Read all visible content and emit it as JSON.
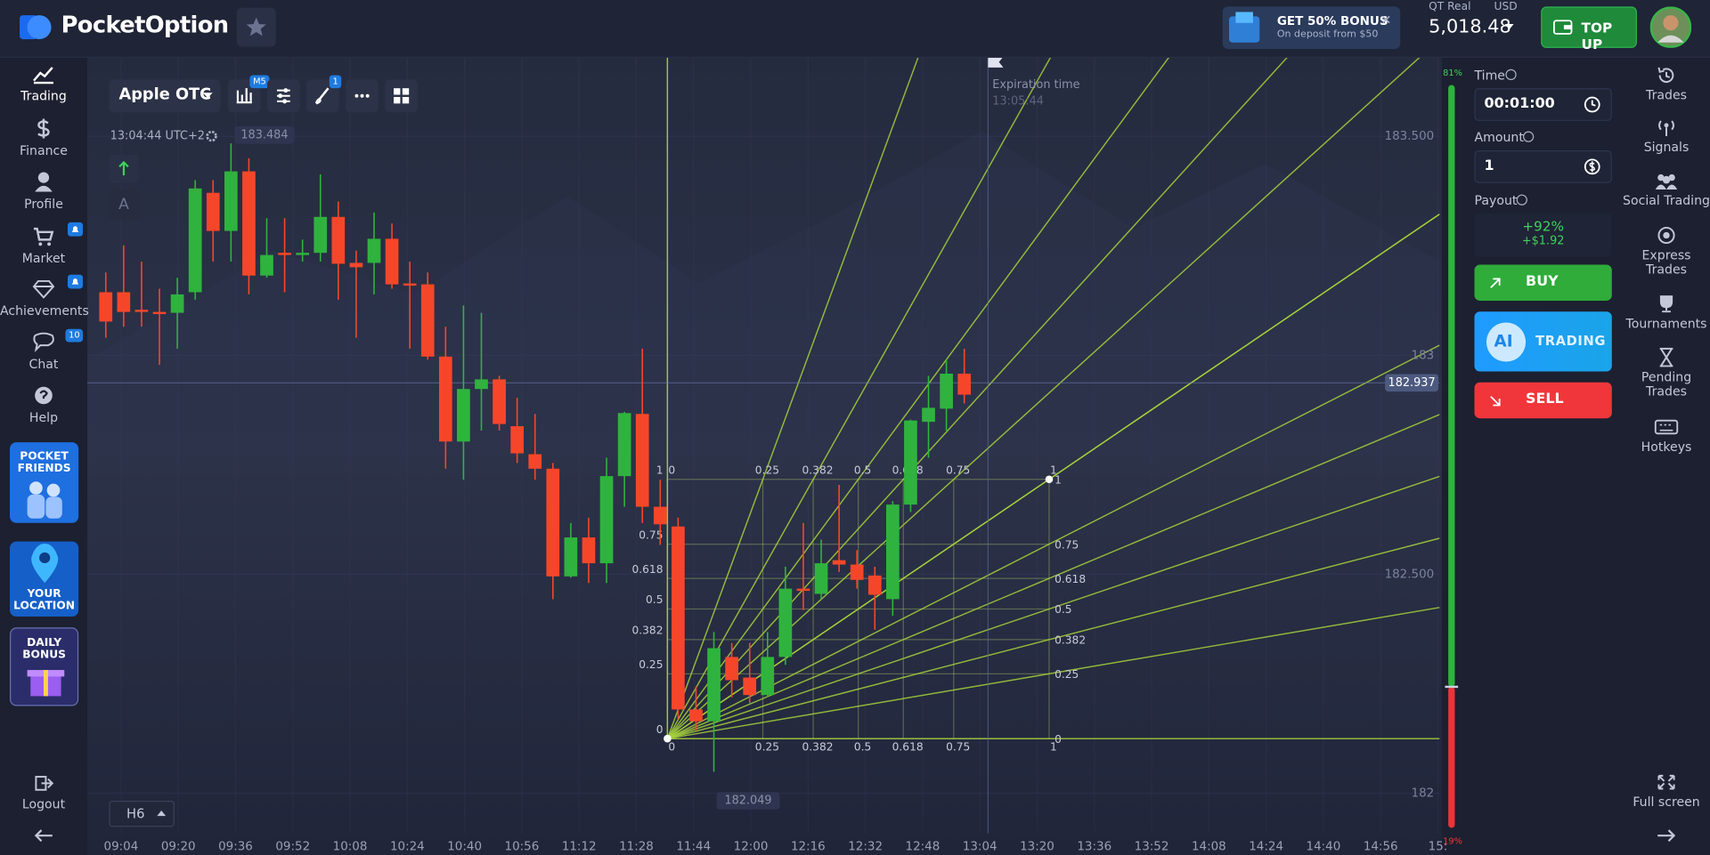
{
  "header": {
    "logo": "PocketOption",
    "bonus": {
      "title": "GET 50% BONUS",
      "subtitle": "On deposit from $50"
    },
    "account": {
      "type": "QT Real",
      "currency": "USD",
      "balance": "5,018.48"
    },
    "top_up": "TOP UP"
  },
  "left_nav": {
    "items": [
      "Trading",
      "Finance",
      "Profile",
      "Market",
      "Achievements",
      "Chat",
      "Help"
    ],
    "chat_badge": 10,
    "promos": [
      "POCKET FRIENDS",
      "YOUR LOCATION",
      "DAILY BONUS"
    ],
    "logout": "Logout"
  },
  "chart": {
    "asset": "Apple OTC",
    "timeframe": "M5",
    "drawings_badge": 1,
    "clock": "13:04:44 UTC+2",
    "text_tool": "A",
    "high_label": 183.484,
    "low_label": 182.049,
    "current_price": 182.937,
    "expiration": {
      "label": "Expiration time",
      "time": "13:05:44"
    },
    "ylim": [
      181.908,
      183.682
    ],
    "yticks": [
      {
        "value": 183.5,
        "label": "183.500"
      },
      183,
      {
        "value": 182.5,
        "label": "182.500"
      },
      182
    ],
    "xticks": [
      "09:04",
      "09:20",
      "09:36",
      "09:52",
      "10:08",
      "10:24",
      "10:40",
      "10:56",
      "11:12",
      "11:28",
      "11:44",
      "12:00",
      "12:16",
      "12:32",
      "12:48",
      "13:04",
      "13:20",
      "13:36",
      "13:52",
      "14:08",
      "14:24",
      "14:40",
      "14:56",
      "15:"
    ],
    "candles": [
      [
        183.144,
        183.189,
        183.04,
        183.077
      ],
      [
        183.144,
        183.251,
        183.065,
        183.099
      ],
      [
        183.104,
        183.214,
        183.065,
        183.099
      ],
      [
        183.099,
        183.152,
        182.978,
        183.097
      ],
      [
        183.097,
        183.177,
        183.015,
        183.139
      ],
      [
        183.144,
        183.4,
        183.127,
        183.381
      ],
      [
        183.371,
        183.4,
        183.214,
        183.284
      ],
      [
        183.284,
        183.484,
        183.214,
        183.42
      ],
      [
        183.42,
        183.45,
        183.139,
        183.182
      ],
      [
        183.182,
        183.313,
        183.177,
        183.229
      ],
      [
        183.234,
        183.313,
        183.144,
        183.231
      ],
      [
        183.231,
        183.264,
        183.214,
        183.234
      ],
      [
        183.234,
        183.413,
        183.214,
        183.316
      ],
      [
        183.316,
        183.351,
        183.127,
        183.209
      ],
      [
        183.211,
        183.239,
        183.04,
        183.201
      ],
      [
        183.211,
        183.326,
        183.139,
        183.266
      ],
      [
        183.266,
        183.301,
        183.152,
        183.162
      ],
      [
        183.164,
        183.214,
        183.015,
        183.162
      ],
      [
        183.162,
        183.189,
        182.99,
        182.997
      ],
      [
        182.997,
        183.065,
        182.741,
        182.803
      ],
      [
        182.803,
        183.114,
        182.716,
        182.923
      ],
      [
        182.923,
        183.097,
        182.828,
        182.945
      ],
      [
        182.945,
        182.953,
        182.828,
        182.843
      ],
      [
        182.838,
        182.903,
        182.754,
        182.776
      ],
      [
        182.774,
        182.866,
        182.716,
        182.741
      ],
      [
        182.741,
        182.754,
        182.443,
        182.495
      ],
      [
        182.495,
        182.617,
        182.492,
        182.584
      ],
      [
        182.584,
        182.629,
        182.48,
        182.525
      ],
      [
        182.525,
        182.766,
        182.48,
        182.724
      ],
      [
        182.724,
        182.871,
        182.654,
        182.868
      ],
      [
        182.866,
        183.015,
        182.617,
        182.654
      ],
      [
        182.654,
        182.716,
        182.567,
        182.614
      ],
      [
        182.609,
        182.629,
        182.169,
        182.191
      ],
      [
        182.191,
        182.244,
        182.144,
        182.164
      ],
      [
        182.164,
        182.368,
        182.049,
        182.331
      ],
      [
        182.311,
        182.343,
        182.219,
        182.258
      ],
      [
        182.264,
        182.343,
        182.206,
        182.224
      ],
      [
        182.224,
        182.368,
        182.219,
        182.311
      ],
      [
        182.311,
        182.517,
        182.293,
        182.467
      ],
      [
        182.467,
        182.617,
        182.418,
        182.462
      ],
      [
        182.455,
        182.579,
        182.443,
        182.525
      ],
      [
        182.532,
        182.704,
        182.505,
        182.522
      ],
      [
        182.522,
        182.555,
        182.467,
        182.487
      ],
      [
        182.497,
        182.517,
        182.373,
        182.453
      ],
      [
        182.443,
        182.667,
        182.405,
        182.659
      ],
      [
        182.659,
        182.853,
        182.642,
        182.851
      ],
      [
        182.848,
        182.953,
        182.766,
        182.88
      ],
      [
        182.878,
        182.99,
        182.828,
        182.958
      ],
      [
        182.958,
        183.015,
        182.89,
        182.91
      ]
    ],
    "fib_fan": {
      "levels": [
        0,
        0.25,
        0.382,
        0.5,
        0.618,
        0.75,
        1
      ]
    },
    "sentiment": {
      "up": 81,
      "up_label": "81%",
      "down": 19,
      "down_label": "19%"
    },
    "period": "H6"
  },
  "trade_panel": {
    "time_label": "Time",
    "time": "00:01:00",
    "amount_label": "Amount",
    "amount": 1,
    "payout_label": "Payout",
    "payout_percent": "+92%",
    "payout_amount": "+$1.92",
    "buy": "BUY",
    "ai_badge": "AI",
    "ai": "TRADING",
    "sell": "SELL"
  },
  "right_nav": {
    "items": [
      "Trades",
      "Signals",
      "Social Trading",
      "Express Trades",
      "Tournaments",
      "Pending Trades",
      "Hotkeys"
    ],
    "fullscreen": "Full screen"
  }
}
